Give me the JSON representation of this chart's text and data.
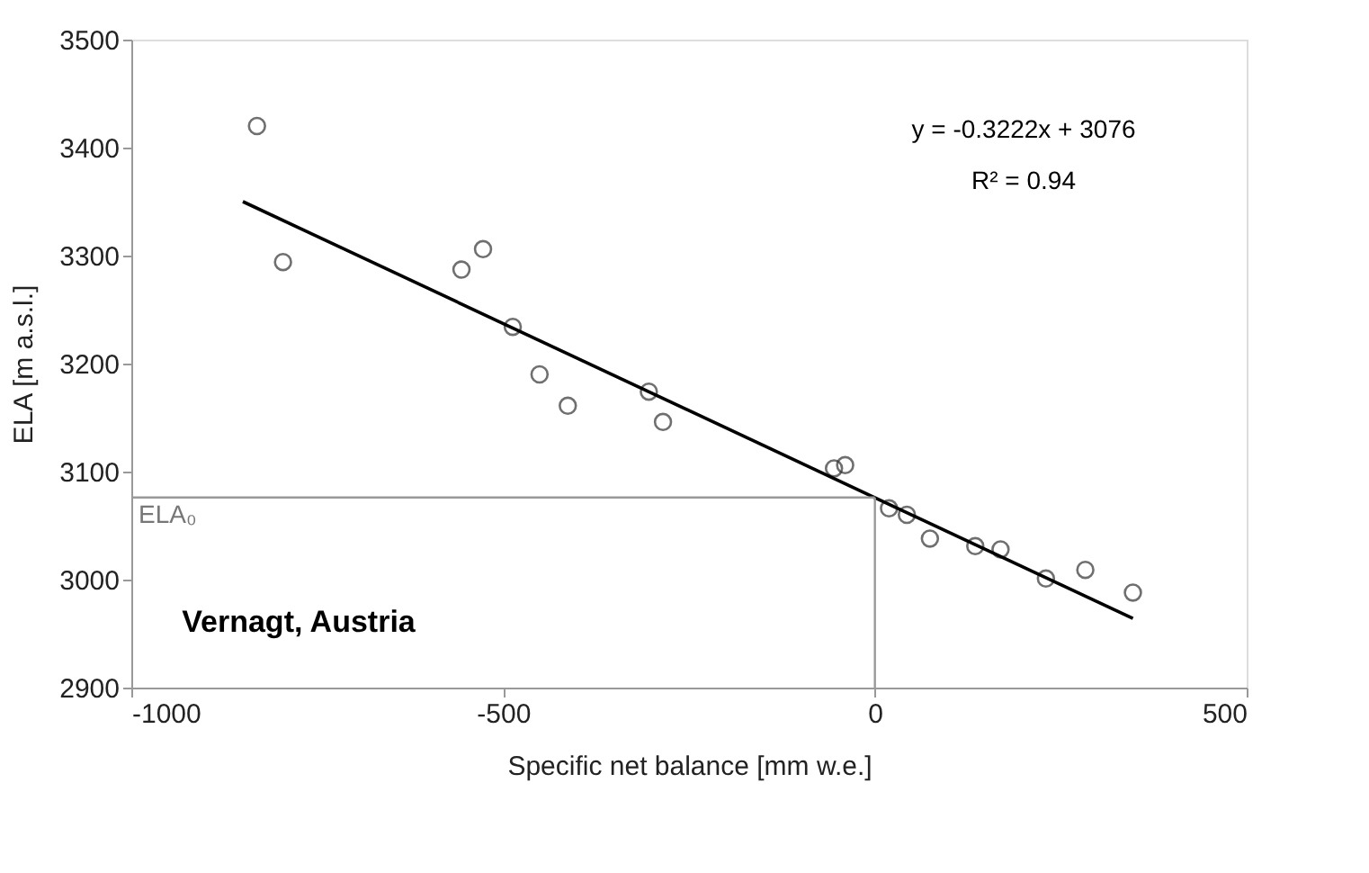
{
  "chart_data": {
    "type": "scatter",
    "xlabel": "Specific net balance [mm w.e.]",
    "ylabel": "ELA [m a.s.l.]",
    "xlim": [
      -1000,
      500
    ],
    "xticks": [
      -1000,
      -500,
      0,
      500
    ],
    "ylim": [
      2900,
      3500
    ],
    "yticks": [
      2900,
      3000,
      3100,
      3200,
      3300,
      3400,
      3500
    ],
    "grid": false,
    "series": [
      {
        "color": "#333333",
        "marker": "circle",
        "x": [
          -831,
          -796,
          -556,
          -527,
          -487,
          -451,
          -413,
          -304,
          -285,
          -55,
          -40,
          19,
          43,
          74,
          135,
          169,
          230,
          283,
          347
        ],
        "values": [
          3420,
          3294,
          3287,
          3306,
          3234,
          3190,
          3161,
          3174,
          3146,
          3103,
          3106,
          3066,
          3060,
          3038,
          3031,
          3028,
          3001,
          3009,
          2988
        ]
      },
      {
        "type": "line",
        "color": "#000000",
        "marker": "none",
        "x": [
          -850,
          347
        ],
        "values": [
          3350,
          2964
        ]
      }
    ],
    "ref_lines": [
      {
        "axis": "y",
        "value": 3076,
        "label": "ELA₀",
        "color": "#999999"
      },
      {
        "axis": "x",
        "value": 0,
        "color": "#999999"
      }
    ],
    "annotations": [
      "y = -0.3222x + 3076",
      "R² = 0.94",
      "Vernagt, Austria"
    ]
  }
}
